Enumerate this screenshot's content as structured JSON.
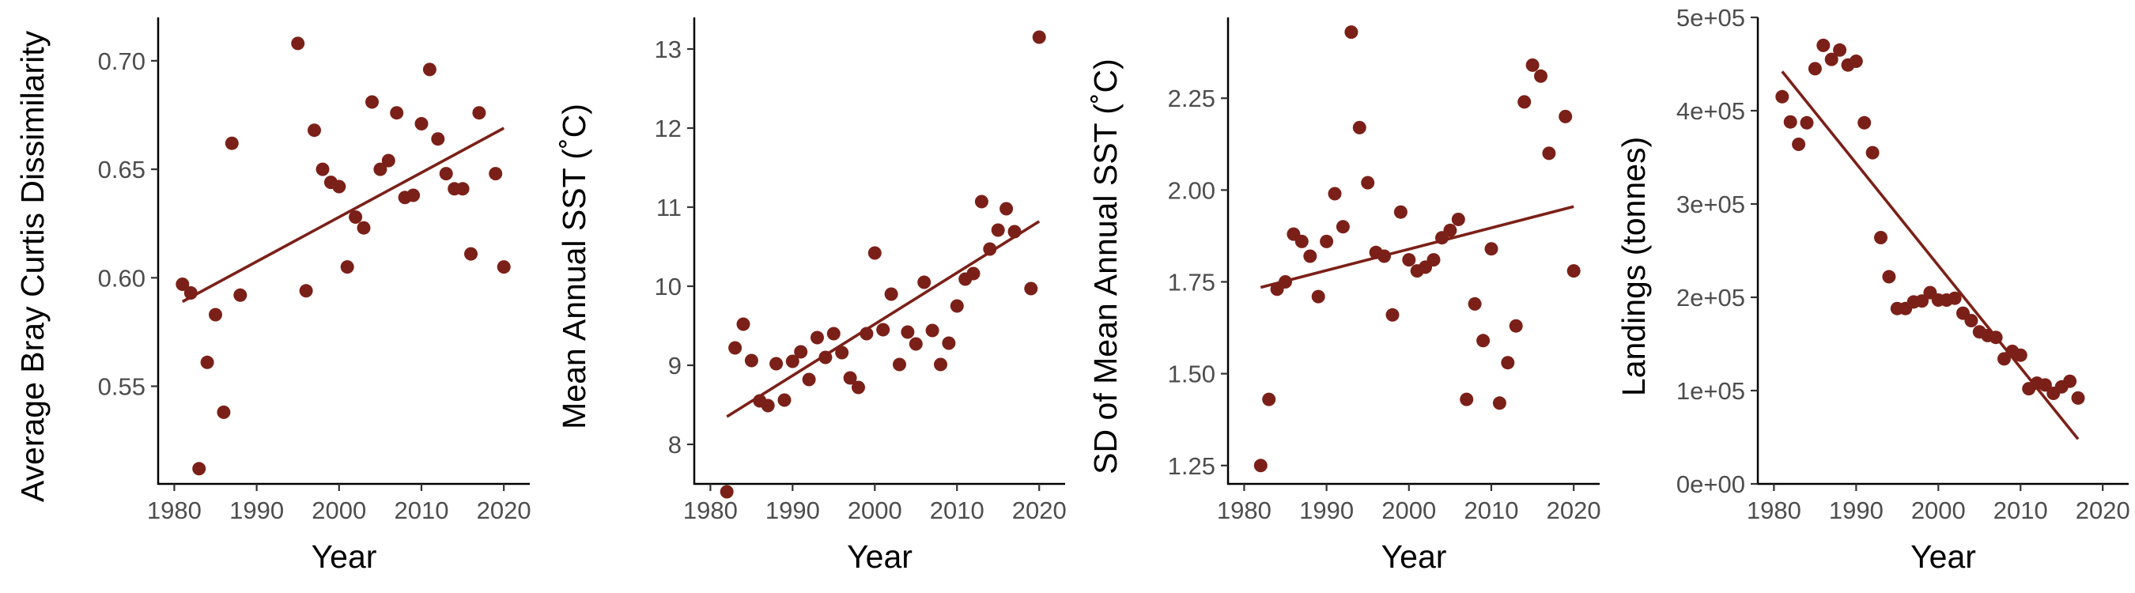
{
  "colors": {
    "marker": "#7b2018",
    "fit": "#7b2018"
  },
  "chart_data": [
    {
      "type": "scatter",
      "title": "",
      "xlabel": "Year",
      "ylabel": "Average Bray Curtis Dissimilarity",
      "xlim": [
        1979,
        2022
      ],
      "ylim": [
        0.505,
        0.72
      ],
      "xticks": [
        1980,
        1990,
        2000,
        2010,
        2020
      ],
      "xtick_labels": [
        "1980",
        "1990",
        "2000",
        "2010",
        "2020"
      ],
      "yticks": [
        0.55,
        0.6,
        0.65,
        0.7
      ],
      "ytick_labels": [
        "0.55",
        "0.60",
        "0.65",
        "0.70"
      ],
      "grid": false,
      "legend": "none",
      "series": [
        {
          "x": [
            1981,
            1982,
            1983,
            1984,
            1985,
            1986,
            1987,
            1988,
            1995,
            1996,
            1997,
            1998,
            1999,
            2000,
            2001,
            2002,
            2003,
            2004,
            2005,
            2006,
            2007,
            2008,
            2009,
            2010,
            2011,
            2012,
            2013,
            2014,
            2015,
            2016,
            2017,
            2019,
            2020
          ],
          "y": [
            0.597,
            0.593,
            0.512,
            0.561,
            0.583,
            0.538,
            0.662,
            0.592,
            0.708,
            0.594,
            0.668,
            0.65,
            0.644,
            0.642,
            0.605,
            0.628,
            0.623,
            0.681,
            0.65,
            0.654,
            0.676,
            0.637,
            0.638,
            0.671,
            0.696,
            0.664,
            0.648,
            0.641,
            0.641,
            0.611,
            0.676,
            0.648,
            0.605
          ]
        }
      ],
      "trend": {
        "x": [
          1981,
          2020
        ],
        "y": [
          0.589,
          0.669
        ]
      }
    },
    {
      "type": "scatter",
      "title": "",
      "xlabel": "Year",
      "ylabel": "Mean Annual SST (˚C)",
      "xlim": [
        1979,
        2022
      ],
      "ylim": [
        7.5,
        13.4
      ],
      "xticks": [
        1980,
        1990,
        2000,
        2010,
        2020
      ],
      "xtick_labels": [
        "1980",
        "1990",
        "2000",
        "2010",
        "2020"
      ],
      "yticks": [
        8,
        9,
        10,
        11,
        12,
        13
      ],
      "ytick_labels": [
        "8",
        "9",
        "10",
        "11",
        "12",
        "13"
      ],
      "grid": false,
      "legend": "none",
      "series": [
        {
          "x": [
            1982,
            1983,
            1984,
            1985,
            1986,
            1987,
            1988,
            1989,
            1990,
            1991,
            1992,
            1993,
            1994,
            1995,
            1996,
            1997,
            1998,
            1999,
            2000,
            2001,
            2002,
            2003,
            2004,
            2005,
            2006,
            2007,
            2008,
            2009,
            2010,
            2011,
            2012,
            2013,
            2014,
            2015,
            2016,
            2017,
            2019,
            2020
          ],
          "y": [
            7.4,
            9.22,
            9.52,
            9.06,
            8.55,
            8.49,
            9.02,
            8.56,
            9.05,
            9.17,
            8.82,
            9.35,
            9.1,
            9.4,
            9.16,
            8.84,
            8.72,
            9.4,
            10.42,
            9.45,
            9.9,
            9.01,
            9.42,
            9.27,
            10.05,
            9.44,
            9.01,
            9.28,
            9.75,
            10.09,
            10.16,
            11.07,
            10.47,
            10.71,
            10.98,
            10.69,
            9.97,
            13.15
          ]
        }
      ],
      "trend": {
        "x": [
          1982,
          2020
        ],
        "y": [
          8.35,
          10.82
        ]
      }
    },
    {
      "type": "scatter",
      "title": "",
      "xlabel": "Year",
      "ylabel": "SD of Mean Annual SST (˚C)",
      "xlim": [
        1979,
        2022
      ],
      "ylim": [
        1.2,
        2.47
      ],
      "xticks": [
        1980,
        1990,
        2000,
        2010,
        2020
      ],
      "xtick_labels": [
        "1980",
        "1990",
        "2000",
        "2010",
        "2020"
      ],
      "yticks": [
        1.25,
        1.5,
        1.75,
        2.0,
        2.25
      ],
      "ytick_labels": [
        "1.25",
        "1.50",
        "1.75",
        "2.00",
        "2.25"
      ],
      "grid": false,
      "legend": "none",
      "series": [
        {
          "x": [
            1982,
            1983,
            1984,
            1985,
            1986,
            1987,
            1988,
            1989,
            1990,
            1991,
            1992,
            1993,
            1994,
            1995,
            1996,
            1997,
            1998,
            1999,
            2000,
            2001,
            2002,
            2003,
            2004,
            2005,
            2006,
            2007,
            2008,
            2009,
            2010,
            2011,
            2012,
            2013,
            2014,
            2015,
            2016,
            2017,
            2019,
            2020
          ],
          "y": [
            1.25,
            1.43,
            1.73,
            1.75,
            1.88,
            1.86,
            1.82,
            1.71,
            1.86,
            1.99,
            1.9,
            2.43,
            2.17,
            2.02,
            1.83,
            1.82,
            1.66,
            1.94,
            1.81,
            1.78,
            1.79,
            1.81,
            1.87,
            1.89,
            1.92,
            1.43,
            1.69,
            1.59,
            1.84,
            1.42,
            1.53,
            1.63,
            2.24,
            2.34,
            2.31,
            2.1,
            2.2,
            1.78
          ]
        }
      ],
      "trend": {
        "x": [
          1982,
          2020
        ],
        "y": [
          1.735,
          1.955
        ]
      }
    },
    {
      "type": "scatter",
      "title": "",
      "xlabel": "Year",
      "ylabel": "Landings (tonnes)",
      "xlim": [
        1979,
        2022
      ],
      "ylim": [
        0,
        500000
      ],
      "xticks": [
        1980,
        1990,
        2000,
        2010,
        2020
      ],
      "xtick_labels": [
        "1980",
        "1990",
        "2000",
        "2010",
        "2020"
      ],
      "yticks": [
        0,
        100000,
        200000,
        300000,
        400000,
        500000
      ],
      "ytick_labels": [
        "0e+00",
        "1e+05",
        "2e+05",
        "3e+05",
        "4e+05",
        "5e+05"
      ],
      "grid": false,
      "legend": "none",
      "series": [
        {
          "x": [
            1981,
            1982,
            1983,
            1984,
            1985,
            1986,
            1987,
            1988,
            1989,
            1990,
            1991,
            1992,
            1993,
            1994,
            1995,
            1996,
            1997,
            1998,
            1999,
            2000,
            2001,
            2002,
            2003,
            2004,
            2005,
            2006,
            2007,
            2008,
            2009,
            2010,
            2011,
            2012,
            2013,
            2014,
            2015,
            2016,
            2017
          ],
          "y": [
            415000,
            388000,
            364000,
            387000,
            445000,
            470000,
            455000,
            465000,
            449000,
            453000,
            387000,
            355000,
            264000,
            222000,
            188000,
            188000,
            195000,
            196000,
            205000,
            197000,
            197000,
            199000,
            183000,
            175000,
            163000,
            159000,
            157000,
            134000,
            142000,
            138000,
            102000,
            108000,
            106000,
            97000,
            104000,
            110000,
            92000
          ]
        }
      ],
      "trend": {
        "x": [
          1981,
          2017
        ],
        "y": [
          442000,
          48000
        ]
      }
    }
  ]
}
